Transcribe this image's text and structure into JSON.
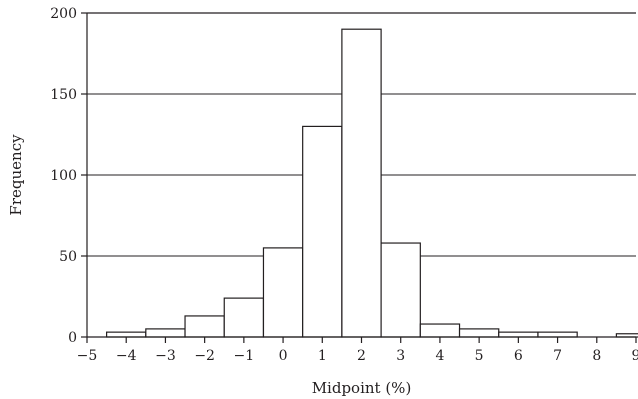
{
  "chart_data": {
    "type": "bar",
    "title": "",
    "xlabel": "Midpoint (%)",
    "ylabel": "Frequency",
    "xlim": [
      -5,
      9
    ],
    "ylim": [
      0,
      200
    ],
    "x_ticks": [
      -5,
      -4,
      -3,
      -2,
      -1,
      0,
      1,
      2,
      3,
      4,
      5,
      6,
      7,
      8,
      9
    ],
    "x_tick_labels": [
      "−5",
      "−4",
      "−3",
      "−2",
      "−1",
      "0",
      "1",
      "2",
      "3",
      "4",
      "5",
      "6",
      "7",
      "8",
      "9"
    ],
    "y_ticks": [
      0,
      50,
      100,
      150,
      200
    ],
    "y_tick_labels": [
      "0",
      "50",
      "100",
      "150",
      "200"
    ],
    "grid": "horizontal",
    "bin_width": 1,
    "bins": [
      {
        "midpoint": -4,
        "value": 3
      },
      {
        "midpoint": -3,
        "value": 5
      },
      {
        "midpoint": -2,
        "value": 13
      },
      {
        "midpoint": -1,
        "value": 24
      },
      {
        "midpoint": 0,
        "value": 55
      },
      {
        "midpoint": 1,
        "value": 130
      },
      {
        "midpoint": 2,
        "value": 190
      },
      {
        "midpoint": 3,
        "value": 58
      },
      {
        "midpoint": 4,
        "value": 8
      },
      {
        "midpoint": 5,
        "value": 5
      },
      {
        "midpoint": 6,
        "value": 3
      },
      {
        "midpoint": 7,
        "value": 3
      },
      {
        "midpoint": 8,
        "value": 0
      },
      {
        "midpoint": 9,
        "value": 2
      }
    ]
  }
}
